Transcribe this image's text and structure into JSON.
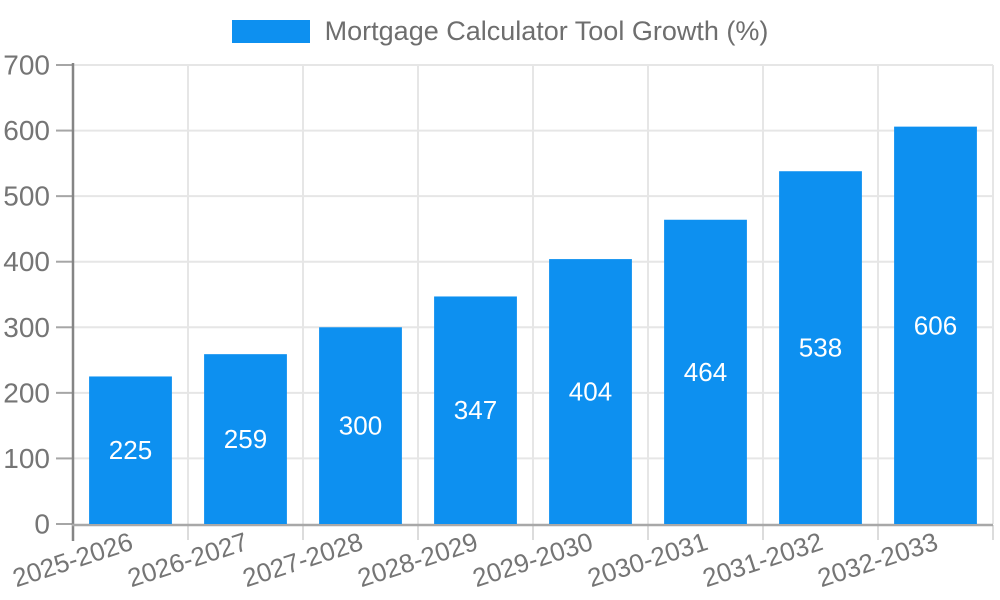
{
  "page": {
    "background": "#FFFFFF"
  },
  "chart_data": {
    "type": "bar",
    "title": "Mortgage Calculator Tool Growth (%)",
    "series_name": "Mortgage Calculator Tool Growth (%)",
    "categories": [
      "2025-2026",
      "2026-2027",
      "2027-2028",
      "2028-2029",
      "2029-2030",
      "2030-2031",
      "2031-2032",
      "2032-2033"
    ],
    "values": [
      225,
      259,
      300,
      347,
      404,
      464,
      538,
      606
    ],
    "xlabel": "",
    "ylabel": "",
    "ylim": [
      0,
      700
    ],
    "yticks": [
      0,
      100,
      200,
      300,
      400,
      500,
      600,
      700
    ],
    "grid": true,
    "legend_position": "top",
    "value_labels_shown": true,
    "x_label_rotation_deg": -18,
    "colors": {
      "bar": "#0D90F0",
      "value_label": "#FFFFFF",
      "axis_text": "#757575",
      "legend_text": "#6E6E6E",
      "gridline": "#E6E6E6",
      "y_axis_line": "#858585",
      "x_axis_line": "#A8A8A8",
      "y_tick": "#A6A6A6",
      "x_tick": "#DCDCDC",
      "background": "#FFFFFF"
    }
  }
}
